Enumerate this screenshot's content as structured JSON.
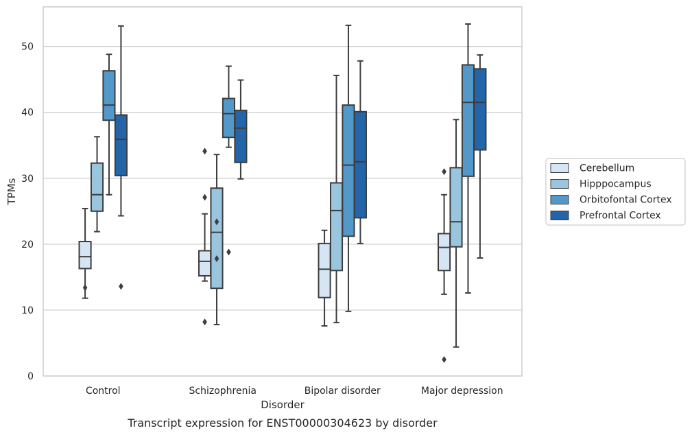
{
  "chart_data": {
    "type": "box",
    "title": "Transcript expression for ENST00000304623 by disorder",
    "xlabel": "Disorder",
    "ylabel": "TPMs",
    "ylim": [
      0,
      56
    ],
    "yticks": [
      0,
      10,
      20,
      30,
      40,
      50
    ],
    "grid": true,
    "legend_position": "right",
    "categories": [
      "Control",
      "Schizophrenia",
      "Bipolar disorder",
      "Major depression"
    ],
    "series": [
      {
        "name": "Cerebellum",
        "color": "#d6e5f4",
        "boxes": [
          {
            "whisker_low": 11.8,
            "q1": 16.3,
            "median": 18.1,
            "q3": 20.4,
            "whisker_high": 25.4,
            "outliers": [
              13.4
            ]
          },
          {
            "whisker_low": 14.4,
            "q1": 15.2,
            "median": 17.4,
            "q3": 19.0,
            "whisker_high": 24.6,
            "outliers": [
              8.2,
              27.1,
              34.1
            ]
          },
          {
            "whisker_low": 7.6,
            "q1": 11.9,
            "median": 16.2,
            "q3": 20.1,
            "whisker_high": 22.1,
            "outliers": []
          },
          {
            "whisker_low": 12.4,
            "q1": 16.0,
            "median": 19.5,
            "q3": 21.6,
            "whisker_high": 27.5,
            "outliers": [
              2.5,
              31.0
            ]
          }
        ]
      },
      {
        "name": "Hipppocampus",
        "color": "#9ac5de",
        "boxes": [
          {
            "whisker_low": 21.9,
            "q1": 25.0,
            "median": 27.5,
            "q3": 32.3,
            "whisker_high": 36.3,
            "outliers": []
          },
          {
            "whisker_low": 7.8,
            "q1": 13.3,
            "median": 21.8,
            "q3": 28.5,
            "whisker_high": 33.6,
            "outliers": [
              17.8,
              23.4
            ]
          },
          {
            "whisker_low": 8.1,
            "q1": 16.0,
            "median": 25.1,
            "q3": 29.3,
            "whisker_high": 45.6,
            "outliers": []
          },
          {
            "whisker_low": 4.4,
            "q1": 19.6,
            "median": 23.4,
            "q3": 31.6,
            "whisker_high": 38.9,
            "outliers": []
          }
        ]
      },
      {
        "name": "Orbitofontal Cortex",
        "color": "#5299c9",
        "boxes": [
          {
            "whisker_low": 27.5,
            "q1": 38.8,
            "median": 41.1,
            "q3": 46.3,
            "whisker_high": 48.8,
            "outliers": []
          },
          {
            "whisker_low": 34.7,
            "q1": 36.2,
            "median": 39.8,
            "q3": 42.1,
            "whisker_high": 47.0,
            "outliers": [
              18.8
            ]
          },
          {
            "whisker_low": 9.8,
            "q1": 21.2,
            "median": 32.0,
            "q3": 41.1,
            "whisker_high": 53.2,
            "outliers": []
          },
          {
            "whisker_low": 12.6,
            "q1": 30.3,
            "median": 41.5,
            "q3": 47.2,
            "whisker_high": 53.4,
            "outliers": []
          }
        ]
      },
      {
        "name": "Prefrontal Cortex",
        "color": "#2464a8",
        "boxes": [
          {
            "whisker_low": 24.3,
            "q1": 30.4,
            "median": 35.9,
            "q3": 39.6,
            "whisker_high": 53.1,
            "outliers": [
              13.6
            ]
          },
          {
            "whisker_low": 29.9,
            "q1": 32.4,
            "median": 37.6,
            "q3": 40.3,
            "whisker_high": 44.9,
            "outliers": []
          },
          {
            "whisker_low": 20.1,
            "q1": 24.0,
            "median": 32.5,
            "q3": 40.1,
            "whisker_high": 47.8,
            "outliers": []
          },
          {
            "whisker_low": 17.9,
            "q1": 34.3,
            "median": 41.5,
            "q3": 46.6,
            "whisker_high": 48.7,
            "outliers": []
          }
        ]
      }
    ]
  }
}
